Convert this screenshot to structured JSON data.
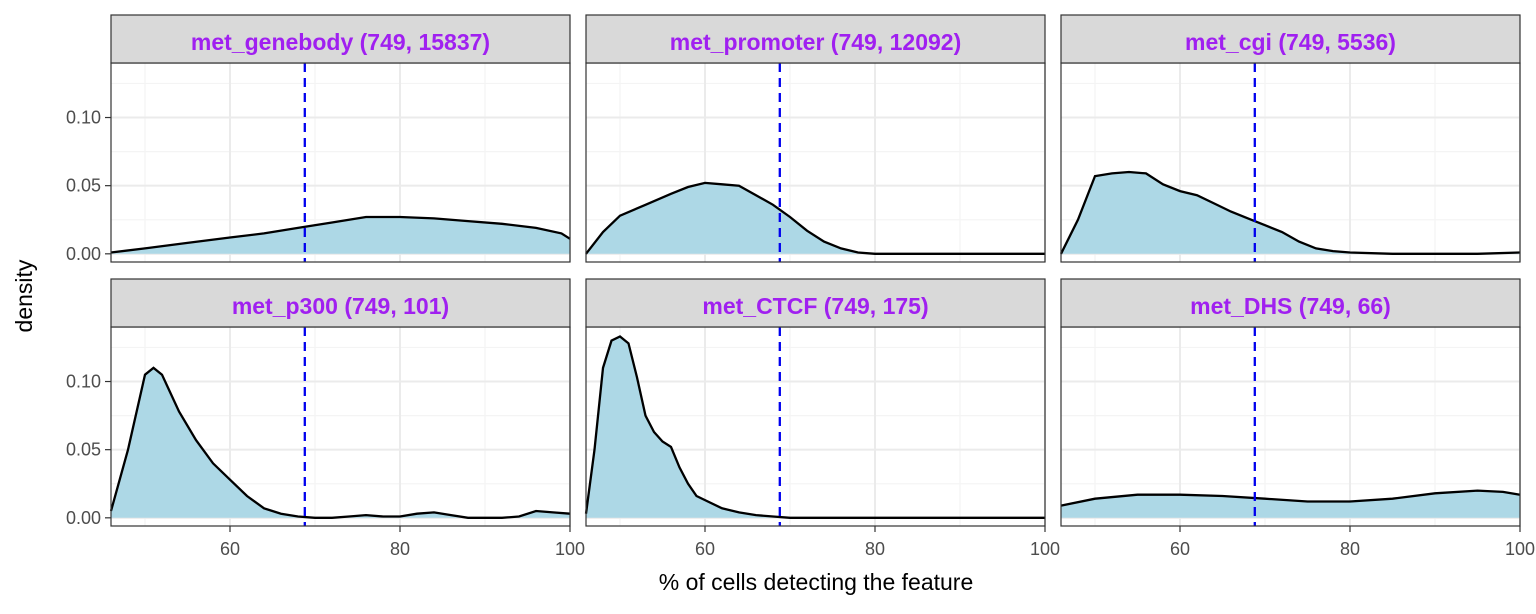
{
  "chart_data": {
    "type": "area",
    "xlabel": "% of cells detecting the feature",
    "ylabel": "density",
    "xlim": [
      46,
      100
    ],
    "ylim": [
      -0.006,
      0.14
    ],
    "x_ticks": [
      60,
      80,
      100
    ],
    "y_ticks": [
      0.0,
      0.05,
      0.1
    ],
    "y_tick_labels": [
      "0.00",
      "0.05",
      "0.10"
    ],
    "reference_line_x": 68.8,
    "grid": true,
    "colors": {
      "fill": "#add8e6",
      "reference_line": "#0000ee",
      "strip_title": "#a020f0"
    },
    "panels": [
      {
        "title": "met_genebody (749, 15837)",
        "x": [
          46,
          50,
          55,
          60,
          64,
          68,
          72,
          76,
          80,
          84,
          88,
          92,
          96,
          99,
          100
        ],
        "y": [
          0.001,
          0.004,
          0.008,
          0.012,
          0.015,
          0.019,
          0.023,
          0.027,
          0.027,
          0.026,
          0.024,
          0.022,
          0.019,
          0.015,
          0.011
        ]
      },
      {
        "title": "met_promoter (749, 12092)",
        "x": [
          46,
          48,
          50,
          53,
          56,
          58,
          60,
          62,
          64,
          66,
          68,
          70,
          72,
          74,
          76,
          78,
          80,
          85,
          90,
          95,
          100
        ],
        "y": [
          0.0,
          0.016,
          0.028,
          0.036,
          0.044,
          0.049,
          0.052,
          0.051,
          0.05,
          0.043,
          0.036,
          0.027,
          0.017,
          0.009,
          0.004,
          0.001,
          0.0,
          0.0,
          0.0,
          0.0,
          0.0
        ]
      },
      {
        "title": "met_cgi (749, 5536)",
        "x": [
          46,
          48,
          50,
          52,
          54,
          56,
          58,
          60,
          62,
          64,
          66,
          68,
          70,
          72,
          74,
          76,
          78,
          80,
          85,
          90,
          95,
          100
        ],
        "y": [
          0.0,
          0.025,
          0.057,
          0.059,
          0.06,
          0.059,
          0.051,
          0.046,
          0.043,
          0.037,
          0.031,
          0.026,
          0.021,
          0.016,
          0.009,
          0.004,
          0.002,
          0.001,
          0.0,
          0.0,
          0.0,
          0.001
        ]
      },
      {
        "title": "met_p300 (749, 101)",
        "x": [
          46,
          48,
          50,
          51,
          52,
          54,
          56,
          58,
          60,
          62,
          64,
          66,
          68,
          70,
          72,
          74,
          76,
          78,
          80,
          82,
          84,
          86,
          88,
          90,
          92,
          94,
          96,
          98,
          100
        ],
        "y": [
          0.005,
          0.05,
          0.105,
          0.11,
          0.105,
          0.078,
          0.057,
          0.04,
          0.028,
          0.016,
          0.007,
          0.003,
          0.001,
          0.0,
          0.0,
          0.001,
          0.002,
          0.001,
          0.001,
          0.003,
          0.004,
          0.002,
          0.0,
          0.0,
          0.0,
          0.001,
          0.005,
          0.004,
          0.003
        ]
      },
      {
        "title": "met_CTCF (749, 175)",
        "x": [
          46,
          47,
          48,
          49,
          50,
          51,
          52,
          53,
          54,
          55,
          56,
          57,
          58,
          59,
          60,
          62,
          64,
          66,
          68,
          70,
          75,
          80,
          90,
          100
        ],
        "y": [
          0.003,
          0.05,
          0.11,
          0.13,
          0.133,
          0.128,
          0.103,
          0.075,
          0.063,
          0.056,
          0.052,
          0.037,
          0.025,
          0.016,
          0.013,
          0.007,
          0.004,
          0.002,
          0.001,
          0.0,
          0.0,
          0.0,
          0.0,
          0.0
        ]
      },
      {
        "title": "met_DHS (749, 66)",
        "x": [
          46,
          50,
          55,
          60,
          65,
          70,
          75,
          80,
          85,
          90,
          95,
          98,
          100
        ],
        "y": [
          0.009,
          0.014,
          0.017,
          0.017,
          0.016,
          0.014,
          0.012,
          0.012,
          0.014,
          0.018,
          0.02,
          0.019,
          0.017
        ]
      }
    ]
  }
}
